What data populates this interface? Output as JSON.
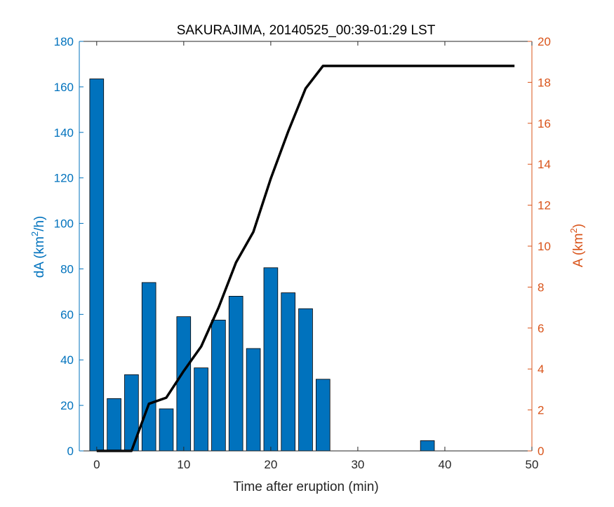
{
  "chart_data": {
    "type": "bar",
    "title": "SAKURAJIMA, 20140525_00:39-01:29 LST",
    "xlabel": "Time after eruption (min)",
    "ylabel_left": {
      "base": "dA (km",
      "sup": "2",
      "rest": "/h)"
    },
    "ylabel_right": {
      "base": "A (km",
      "sup": "2",
      "rest": ")"
    },
    "xlim": [
      -2,
      50
    ],
    "ylim_left": [
      0,
      180
    ],
    "ylim_right": [
      0,
      20
    ],
    "xticks": [
      0,
      10,
      20,
      30,
      40,
      50
    ],
    "yticks_left": [
      0,
      20,
      40,
      60,
      80,
      100,
      120,
      140,
      160,
      180
    ],
    "yticks_right": [
      0,
      2,
      4,
      6,
      8,
      10,
      12,
      14,
      16,
      18,
      20
    ],
    "grid": false,
    "colors": {
      "bars": "#0072BD",
      "left_axis": "#0072BD",
      "right_axis": "#D95319",
      "line": "#000000",
      "axes": "#262626"
    },
    "bar_series": {
      "axis": "left",
      "bar_width": 1.6,
      "x": [
        0,
        2,
        4,
        6,
        8,
        10,
        12,
        14,
        16,
        18,
        20,
        22,
        24,
        26,
        38
      ],
      "values": [
        163.5,
        23,
        33.5,
        74,
        18.5,
        59,
        36.5,
        57.5,
        68,
        45,
        80.5,
        69.5,
        62.5,
        31.5,
        4.5
      ]
    },
    "line_series": {
      "axis": "right",
      "x": [
        0,
        2,
        4,
        6,
        8,
        10,
        12,
        14,
        16,
        18,
        20,
        22,
        24,
        26,
        28,
        30,
        32,
        34,
        36,
        38,
        40,
        42,
        44,
        46,
        48
      ],
      "values": [
        0,
        0,
        0,
        2.3,
        2.6,
        3.9,
        5.1,
        7.0,
        9.2,
        10.7,
        13.3,
        15.6,
        17.7,
        18.8,
        18.8,
        18.8,
        18.8,
        18.8,
        18.8,
        18.8,
        18.8,
        18.8,
        18.8,
        18.8,
        18.8
      ]
    }
  }
}
